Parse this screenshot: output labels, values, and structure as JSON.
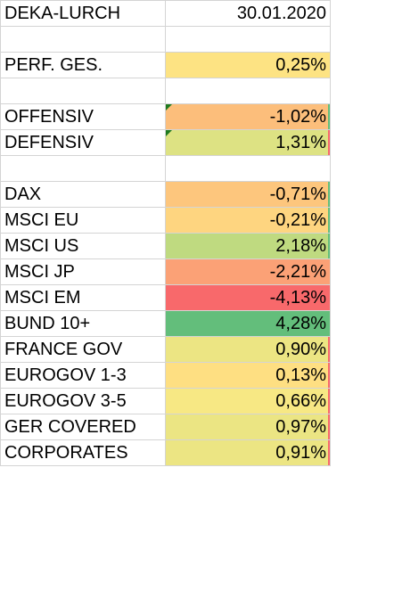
{
  "header": {
    "title": "DEKA-LURCH",
    "date": "30.01.2020"
  },
  "rows": [
    {
      "label": "DEKA-LURCH",
      "value": "30.01.2020",
      "bg": "#ffffff"
    },
    {
      "label": "",
      "value": "",
      "bg": "#ffffff"
    },
    {
      "label": "PERF. GES.",
      "value": "0,25%",
      "bg": "#fde383"
    },
    {
      "label": "",
      "value": "",
      "bg": "#ffffff"
    },
    {
      "label": "OFFENSIV",
      "value": "-1,02%",
      "bg": "#fcbe7b",
      "marker": true,
      "edge": "#63be7b"
    },
    {
      "label": "DEFENSIV",
      "value": "1,31%",
      "bg": "#dde283",
      "marker": true,
      "edge": "#f8696b"
    },
    {
      "label": "",
      "value": "",
      "bg": "#ffffff"
    },
    {
      "label": "DAX",
      "value": "-0,71%",
      "bg": "#fdc67d",
      "edge": "#63be7b"
    },
    {
      "label": "MSCI EU",
      "value": "-0,21%",
      "bg": "#fed580",
      "edge": "#63be7b"
    },
    {
      "label": "MSCI US",
      "value": "2,18%",
      "bg": "#bfda80",
      "edge": "#63be7b"
    },
    {
      "label": "MSCI JP",
      "value": "-2,21%",
      "bg": "#fba176"
    },
    {
      "label": "MSCI EM",
      "value": "-4,13%",
      "bg": "#f8696b"
    },
    {
      "label": "BUND 10+",
      "value": "4,28%",
      "bg": "#63be7b"
    },
    {
      "label": "FRANCE GOV",
      "value": "0,90%",
      "bg": "#ece583",
      "edge": "#f8696b"
    },
    {
      "label": "EUROGOV 1-3",
      "value": "0,13%",
      "bg": "#fedf82",
      "edge": "#f8696b"
    },
    {
      "label": "EUROGOV 3-5",
      "value": "0,66%",
      "bg": "#f7e884",
      "edge": "#f8696b"
    },
    {
      "label": "GER COVERED",
      "value": "0,97%",
      "bg": "#ebe583",
      "edge": "#f8696b"
    },
    {
      "label": "CORPORATES",
      "value": "0,91%",
      "bg": "#ece583",
      "edge": "#f8696b"
    }
  ]
}
